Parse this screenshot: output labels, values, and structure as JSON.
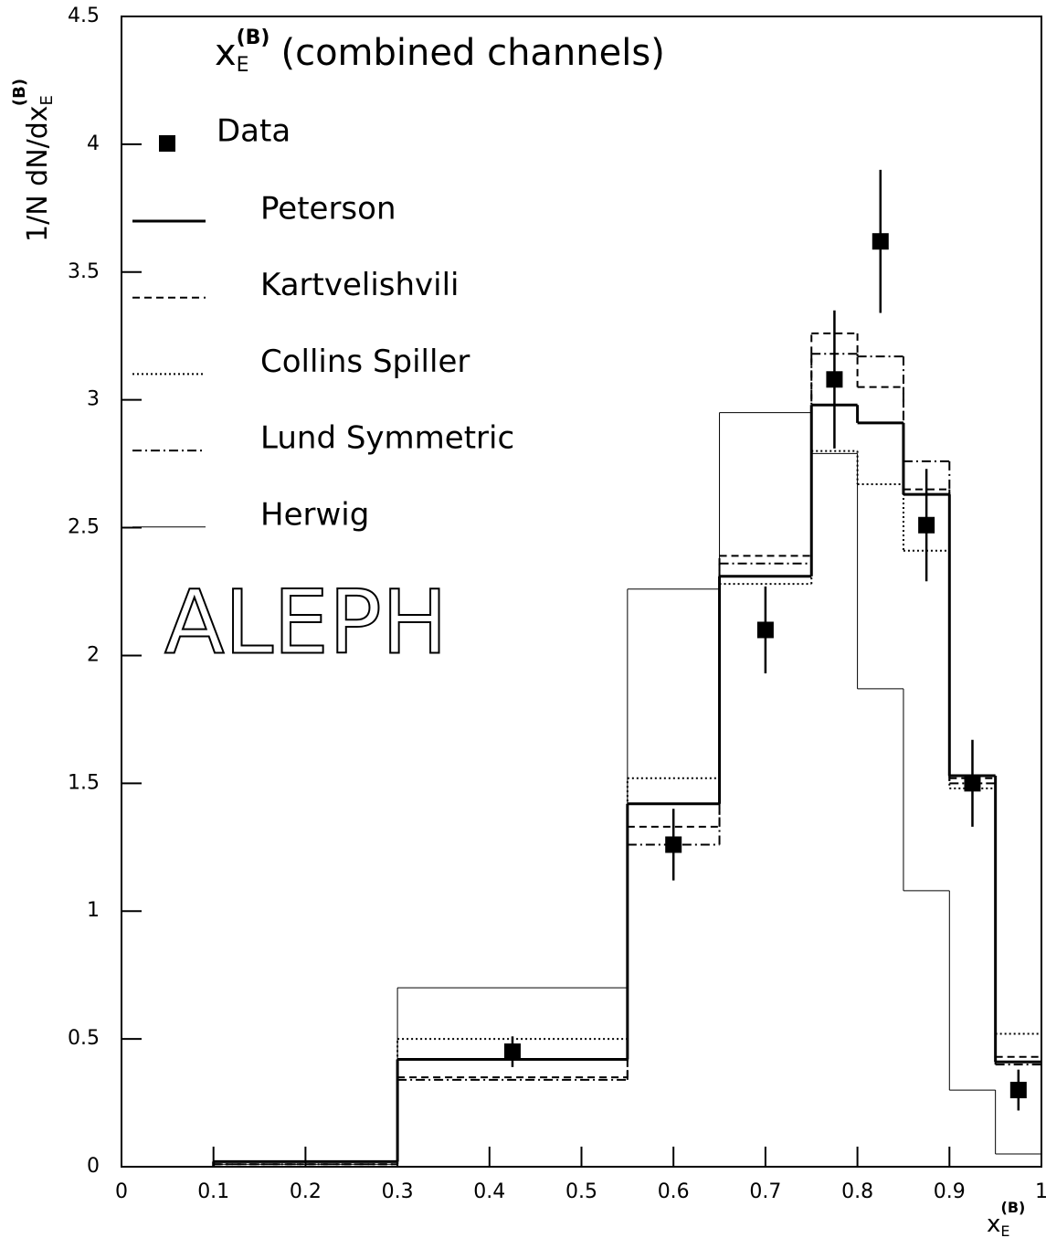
{
  "chart_data": {
    "type": "step-histogram",
    "title": {
      "main": "x",
      "sub": "E",
      "sup": "(B)",
      "rest": "(combined channels)"
    },
    "xlabel": {
      "main": "x",
      "sub": "E",
      "sup": "(B)"
    },
    "ylabel": {
      "main": "1/N dN/dx",
      "sub": "E",
      "sup": "(B)"
    },
    "annotation": "ALEPH",
    "xlim": [
      0,
      1
    ],
    "ylim": [
      0,
      4.5
    ],
    "xticks": [
      0,
      0.1,
      0.2,
      0.3,
      0.4,
      0.5,
      0.6,
      0.7,
      0.8,
      0.9,
      1
    ],
    "yticks": [
      0,
      0.5,
      1,
      1.5,
      2,
      2.5,
      3,
      3.5,
      4,
      4.5
    ],
    "bins": [
      0.1,
      0.3,
      0.55,
      0.65,
      0.75,
      0.8,
      0.85,
      0.9,
      0.95,
      1.0
    ],
    "data": {
      "name": "Data",
      "color": "#000000",
      "x": [
        0.425,
        0.6,
        0.7,
        0.775,
        0.825,
        0.875,
        0.925,
        0.975
      ],
      "values": [
        0.45,
        1.26,
        2.1,
        3.08,
        3.62,
        2.51,
        1.5,
        0.3
      ],
      "errors": [
        0.06,
        0.14,
        0.17,
        0.27,
        0.28,
        0.22,
        0.17,
        0.08
      ]
    },
    "series": [
      {
        "name": "Peterson",
        "color": "#000000",
        "width": 3,
        "dash": "none",
        "values": [
          0.02,
          0.42,
          1.42,
          2.31,
          2.98,
          2.91,
          2.63,
          1.53,
          0.41
        ]
      },
      {
        "name": "Kartvelishvili",
        "color": "#000000",
        "width": 2,
        "dash": "8,5",
        "values": [
          0.01,
          0.35,
          1.33,
          2.39,
          3.26,
          3.05,
          2.65,
          1.52,
          0.43
        ]
      },
      {
        "name": "Collins Spiller",
        "color": "#000000",
        "width": 2,
        "dash": "2,3",
        "values": [
          0.02,
          0.5,
          1.52,
          2.28,
          2.8,
          2.67,
          2.41,
          1.48,
          0.52
        ]
      },
      {
        "name": "Lund Symmetric",
        "color": "#000000",
        "width": 2,
        "dash": "10,4,2,4",
        "values": [
          0.01,
          0.34,
          1.26,
          2.36,
          3.18,
          3.17,
          2.76,
          1.5,
          0.4
        ]
      },
      {
        "name": "Herwig",
        "color": "#000000",
        "width": 1,
        "dash": "none",
        "values": [
          0.01,
          0.7,
          2.26,
          2.95,
          2.79,
          1.87,
          1.08,
          0.3,
          0.05
        ]
      }
    ]
  }
}
